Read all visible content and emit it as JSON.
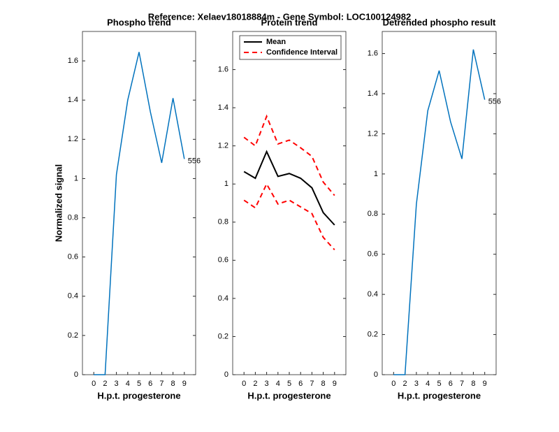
{
  "title": "Reference:  Xelaev18018884m - Gene Symbol:  LOC100124982",
  "chart_data": [
    {
      "type": "line",
      "title": "Phospho trend",
      "xlabel": "H.p.t. progesterone",
      "ylabel": "Normalized signal",
      "categories": [
        0,
        2,
        3,
        4,
        5,
        6,
        7,
        8,
        9
      ],
      "series": [
        {
          "color": "#0072bd",
          "values": [
            0,
            0,
            1.02,
            1.4,
            1.645,
            1.34,
            1.08,
            1.41,
            1.1
          ]
        }
      ],
      "end_label": "556",
      "ylim": [
        0,
        1.75
      ],
      "yticks": [
        0,
        0.2,
        0.4,
        0.6,
        0.8,
        1,
        1.2,
        1.4,
        1.6
      ]
    },
    {
      "type": "band",
      "title": "Protein trend",
      "xlabel": "H.p.t. progesterone",
      "categories": [
        0,
        2,
        3,
        4,
        5,
        6,
        7,
        8,
        9
      ],
      "series": [
        {
          "name": "Mean",
          "color": "#000000",
          "values": [
            1.065,
            1.03,
            1.17,
            1.04,
            1.055,
            1.03,
            0.98,
            0.85,
            0.785
          ]
        },
        {
          "name": "Confidence Interval",
          "color": "#ff0000",
          "upper": [
            1.245,
            1.2,
            1.355,
            1.21,
            1.23,
            1.19,
            1.145,
            1.01,
            0.94
          ],
          "lower": [
            0.915,
            0.875,
            1.0,
            0.895,
            0.915,
            0.88,
            0.845,
            0.72,
            0.655
          ]
        }
      ],
      "legend": "upper left",
      "ylim": [
        0,
        1.8
      ],
      "yticks": [
        0,
        0.2,
        0.4,
        0.6,
        0.8,
        1,
        1.2,
        1.4,
        1.6
      ]
    },
    {
      "type": "line",
      "title": "Detrended phospho result",
      "xlabel": "H.p.t. progesterone",
      "categories": [
        0,
        2,
        3,
        4,
        5,
        6,
        7,
        8,
        9
      ],
      "series": [
        {
          "color": "#0072bd",
          "values": [
            0,
            0,
            0.85,
            1.315,
            1.515,
            1.26,
            1.075,
            1.62,
            1.37
          ]
        }
      ],
      "end_label": "556",
      "ylim": [
        0,
        1.71
      ],
      "yticks": [
        0,
        0.2,
        0.4,
        0.6,
        0.8,
        1,
        1.2,
        1.4,
        1.6
      ]
    }
  ]
}
